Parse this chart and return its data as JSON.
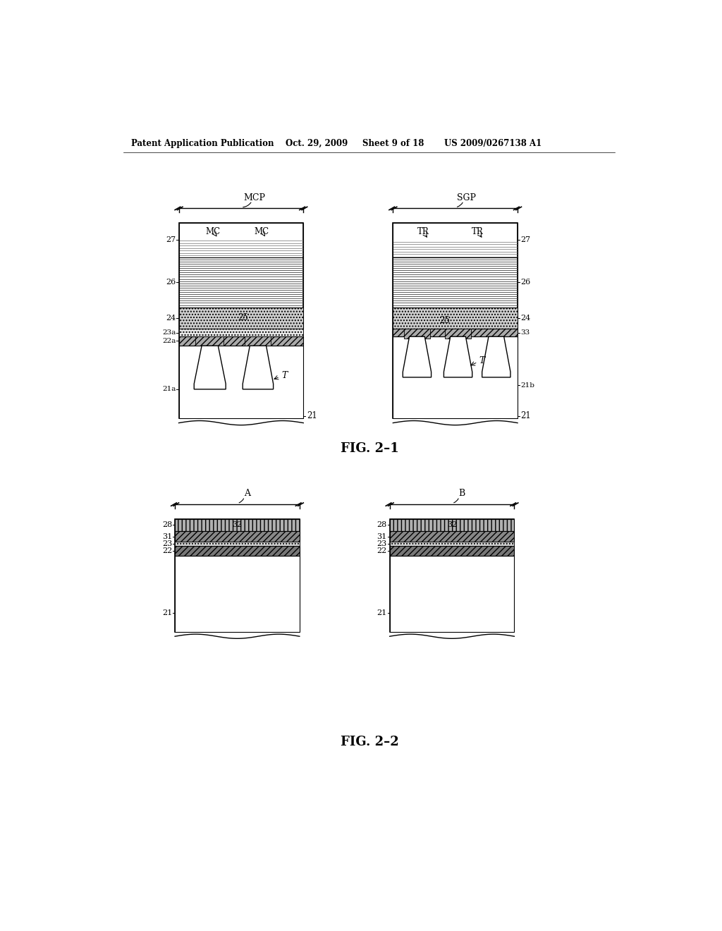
{
  "bg_color": "#ffffff",
  "header_text": "Patent Application Publication",
  "header_date": "Oct. 29, 2009",
  "header_sheet": "Sheet 9 of 18",
  "header_patent": "US 2009/0267138 A1",
  "fig1_title": "FIG. 2–1",
  "fig2_title": "FIG. 2–2"
}
